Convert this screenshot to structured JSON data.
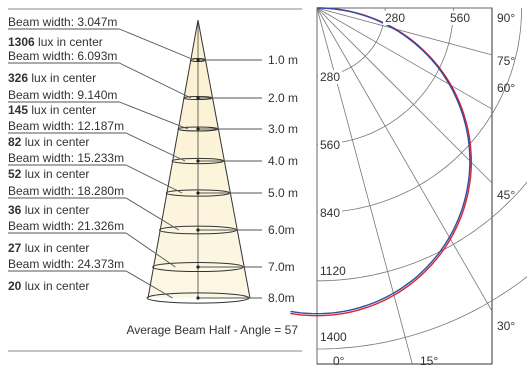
{
  "cone": {
    "levels": [
      {
        "beam": "Beam width: 3.047m",
        "lux": "1306",
        "distance": "1.0 m"
      },
      {
        "beam": "Beam width: 6.093m",
        "lux": "326",
        "distance": "2.0 m"
      },
      {
        "beam": "Beam width: 9.140m",
        "lux": "145",
        "distance": "3.0 m"
      },
      {
        "beam": "Beam width: 12.187m",
        "lux": "82",
        "distance": "4.0 m"
      },
      {
        "beam": "Beam width: 15.233m",
        "lux": "52",
        "distance": "5.0 m"
      },
      {
        "beam": "Beam width: 18.280m",
        "lux": "36",
        "distance": "6.0m"
      },
      {
        "beam": "Beam width: 21.326m",
        "lux": "27",
        "distance": "7.0m"
      },
      {
        "beam": "Beam width: 24.373m",
        "lux": "20",
        "distance": "8.0m"
      }
    ],
    "lux_suffix": " lux in center",
    "caption": "Average Beam Half - Angle = 57"
  },
  "polar": {
    "radial_labels": [
      "280",
      "560",
      "840",
      "1120",
      "1400"
    ],
    "top_labels": [
      "280",
      "560"
    ],
    "angle_labels": [
      "90°",
      "75°",
      "60°",
      "45°",
      "30°"
    ],
    "bottom_labels": [
      "0°",
      "15°"
    ],
    "curve_colors": {
      "red": "#d9232e",
      "blue": "#2c4ea3"
    }
  }
}
